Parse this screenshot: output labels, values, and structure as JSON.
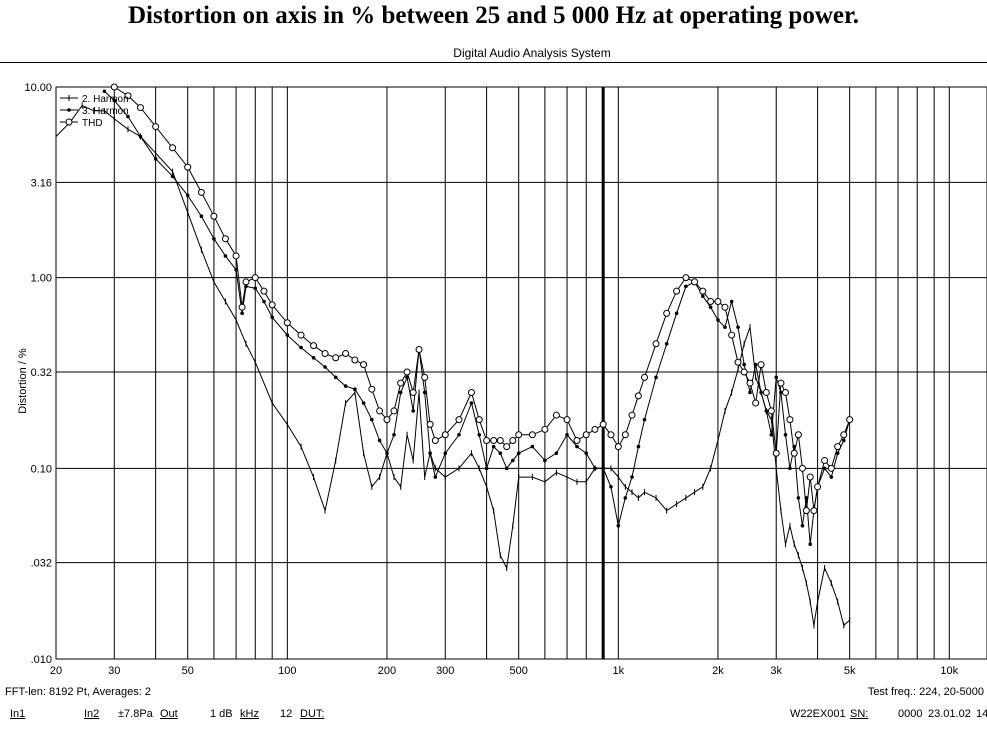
{
  "title": "Distortion on axis in % between 25 and 5 000 Hz at operating power.",
  "subtitle": "Digital Audio Analysis System",
  "ylabel": "Distortion / %",
  "footer": {
    "fft_info": "FFT-len: 8192 Pt, Averages: 2",
    "test_freq": "Test freq.: 224, 20-5000"
  },
  "status_bar": {
    "in1": "In1",
    "in2": "In2",
    "level": "±7.8Pa",
    "out": "Out",
    "db": "1 dB",
    "khz": "kHz",
    "twelve": "12",
    "dut": "DUT:",
    "model": "W22EX001",
    "sn": "SN:",
    "code": "0000",
    "date": "23.01.02",
    "time": "14"
  },
  "chart_data": {
    "type": "line",
    "x_scale": "log",
    "y_scale": "log",
    "xlim": [
      20,
      13000
    ],
    "ylim": [
      0.01,
      10
    ],
    "x_ticks": [
      {
        "v": 20,
        "label": "20"
      },
      {
        "v": 30,
        "label": "30"
      },
      {
        "v": 50,
        "label": "50"
      },
      {
        "v": 100,
        "label": "100"
      },
      {
        "v": 200,
        "label": "200"
      },
      {
        "v": 300,
        "label": "300"
      },
      {
        "v": 500,
        "label": "500"
      },
      {
        "v": 1000,
        "label": "1k"
      },
      {
        "v": 2000,
        "label": "2k"
      },
      {
        "v": 3000,
        "label": "3k"
      },
      {
        "v": 5000,
        "label": "5k"
      },
      {
        "v": 10000,
        "label": "10k"
      }
    ],
    "y_ticks": [
      {
        "v": 10,
        "label": "10.00"
      },
      {
        "v": 3.16,
        "label": "3.16"
      },
      {
        "v": 1,
        "label": "1.00"
      },
      {
        "v": 0.32,
        "label": "0.32"
      },
      {
        "v": 0.1,
        "label": "0.10"
      },
      {
        "v": 0.032,
        "label": ".032"
      },
      {
        "v": 0.01,
        "label": ".010"
      }
    ],
    "marker_freq": 900,
    "legend_position": "top-left",
    "series": [
      {
        "name": "2. Harmon",
        "marker": "bar",
        "x": [
          20,
          22,
          24,
          26,
          28,
          30,
          33,
          36,
          40,
          45,
          50,
          55,
          60,
          65,
          70,
          75,
          80,
          90,
          100,
          110,
          120,
          130,
          140,
          150,
          160,
          170,
          180,
          190,
          200,
          210,
          220,
          230,
          240,
          250,
          260,
          270,
          280,
          300,
          330,
          360,
          380,
          400,
          420,
          440,
          460,
          480,
          500,
          550,
          600,
          650,
          700,
          750,
          800,
          850,
          900,
          950,
          1000,
          1050,
          1100,
          1150,
          1200,
          1300,
          1400,
          1500,
          1600,
          1700,
          1800,
          1900,
          2000,
          2100,
          2200,
          2300,
          2400,
          2500,
          2600,
          2700,
          2800,
          2900,
          3000,
          3100,
          3200,
          3300,
          3400,
          3500,
          3600,
          3700,
          3800,
          3900,
          4000,
          4200,
          4400,
          4600,
          4800,
          5000
        ],
        "y": [
          5.5,
          6.5,
          8.0,
          7.5,
          7.5,
          6.8,
          6.0,
          5.5,
          4.5,
          3.6,
          2.2,
          1.4,
          0.95,
          0.75,
          0.6,
          0.45,
          0.36,
          0.22,
          0.17,
          0.13,
          0.09,
          0.06,
          0.11,
          0.22,
          0.25,
          0.12,
          0.08,
          0.09,
          0.12,
          0.09,
          0.08,
          0.15,
          0.11,
          0.25,
          0.09,
          0.12,
          0.1,
          0.09,
          0.1,
          0.12,
          0.1,
          0.08,
          0.06,
          0.035,
          0.03,
          0.05,
          0.09,
          0.09,
          0.085,
          0.095,
          0.09,
          0.085,
          0.085,
          0.1,
          0.1,
          0.1,
          0.09,
          0.08,
          0.075,
          0.07,
          0.075,
          0.07,
          0.06,
          0.065,
          0.07,
          0.075,
          0.08,
          0.1,
          0.14,
          0.2,
          0.25,
          0.33,
          0.45,
          0.55,
          0.3,
          0.25,
          0.2,
          0.18,
          0.1,
          0.06,
          0.04,
          0.05,
          0.04,
          0.035,
          0.03,
          0.025,
          0.02,
          0.015,
          0.02,
          0.03,
          0.025,
          0.02,
          0.015,
          0.016
        ]
      },
      {
        "name": "3. Harmon",
        "marker": "dot",
        "x": [
          28,
          30,
          33,
          36,
          40,
          45,
          50,
          55,
          60,
          65,
          70,
          73,
          75,
          80,
          85,
          90,
          100,
          110,
          120,
          130,
          140,
          150,
          160,
          170,
          180,
          190,
          200,
          210,
          220,
          230,
          240,
          250,
          260,
          270,
          280,
          300,
          330,
          360,
          380,
          400,
          420,
          440,
          460,
          480,
          500,
          550,
          600,
          650,
          700,
          750,
          800,
          850,
          900,
          950,
          1000,
          1050,
          1100,
          1150,
          1200,
          1300,
          1400,
          1500,
          1600,
          1700,
          1800,
          1900,
          2000,
          2100,
          2200,
          2300,
          2400,
          2500,
          2600,
          2700,
          2800,
          2900,
          3000,
          3100,
          3200,
          3300,
          3400,
          3500,
          3600,
          3700,
          3800,
          3900,
          4000,
          4200,
          4400,
          4600,
          4800,
          5000
        ],
        "y": [
          9.5,
          8.5,
          7.0,
          5.5,
          4.2,
          3.4,
          2.7,
          2.1,
          1.6,
          1.3,
          1.1,
          0.65,
          0.9,
          0.88,
          0.75,
          0.62,
          0.5,
          0.43,
          0.38,
          0.34,
          0.3,
          0.27,
          0.26,
          0.22,
          0.18,
          0.14,
          0.12,
          0.15,
          0.25,
          0.3,
          0.2,
          0.42,
          0.25,
          0.12,
          0.09,
          0.12,
          0.15,
          0.22,
          0.15,
          0.1,
          0.13,
          0.12,
          0.1,
          0.11,
          0.12,
          0.13,
          0.11,
          0.12,
          0.15,
          0.13,
          0.12,
          0.1,
          0.1,
          0.08,
          0.05,
          0.07,
          0.09,
          0.13,
          0.18,
          0.3,
          0.45,
          0.65,
          0.9,
          0.95,
          0.8,
          0.7,
          0.6,
          0.55,
          0.75,
          0.55,
          0.35,
          0.25,
          0.35,
          0.25,
          0.2,
          0.15,
          0.3,
          0.25,
          0.15,
          0.1,
          0.13,
          0.07,
          0.05,
          0.07,
          0.04,
          0.06,
          0.08,
          0.1,
          0.09,
          0.12,
          0.14,
          0.18
        ]
      },
      {
        "name": "THD",
        "marker": "circle",
        "x": [
          30,
          33,
          36,
          40,
          45,
          50,
          55,
          60,
          65,
          70,
          73,
          75,
          80,
          85,
          90,
          100,
          110,
          120,
          130,
          140,
          150,
          160,
          170,
          180,
          190,
          200,
          210,
          220,
          230,
          240,
          250,
          260,
          270,
          280,
          300,
          330,
          360,
          380,
          400,
          420,
          440,
          460,
          480,
          500,
          550,
          600,
          650,
          700,
          750,
          800,
          850,
          900,
          950,
          1000,
          1050,
          1100,
          1150,
          1200,
          1300,
          1400,
          1500,
          1600,
          1700,
          1800,
          1900,
          2000,
          2100,
          2200,
          2300,
          2400,
          2500,
          2600,
          2700,
          2800,
          2900,
          3000,
          3100,
          3200,
          3300,
          3400,
          3500,
          3600,
          3700,
          3800,
          3900,
          4000,
          4200,
          4400,
          4600,
          4800,
          5000
        ],
        "y": [
          10.0,
          9.0,
          7.8,
          6.2,
          4.8,
          3.8,
          2.8,
          2.1,
          1.6,
          1.3,
          0.7,
          0.95,
          1.0,
          0.85,
          0.72,
          0.58,
          0.5,
          0.44,
          0.4,
          0.38,
          0.4,
          0.37,
          0.35,
          0.26,
          0.2,
          0.18,
          0.2,
          0.28,
          0.32,
          0.25,
          0.42,
          0.3,
          0.17,
          0.14,
          0.15,
          0.18,
          0.25,
          0.18,
          0.14,
          0.14,
          0.14,
          0.13,
          0.14,
          0.15,
          0.15,
          0.16,
          0.19,
          0.18,
          0.14,
          0.15,
          0.16,
          0.17,
          0.15,
          0.13,
          0.15,
          0.19,
          0.24,
          0.3,
          0.45,
          0.65,
          0.85,
          1.0,
          0.95,
          0.85,
          0.75,
          0.75,
          0.7,
          0.5,
          0.36,
          0.32,
          0.28,
          0.22,
          0.35,
          0.25,
          0.2,
          0.12,
          0.28,
          0.25,
          0.18,
          0.12,
          0.15,
          0.1,
          0.06,
          0.09,
          0.06,
          0.08,
          0.11,
          0.1,
          0.13,
          0.15,
          0.18
        ]
      }
    ]
  }
}
